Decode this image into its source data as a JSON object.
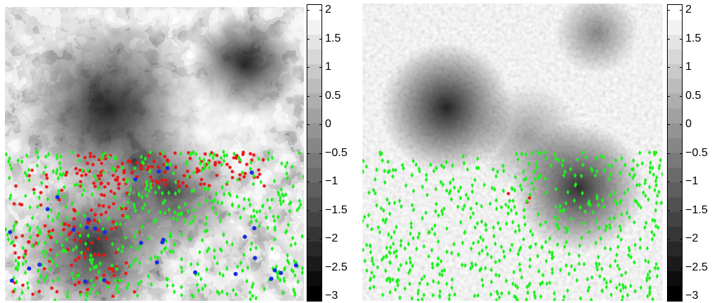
{
  "panels": [
    {
      "id": "left",
      "field": "turbulent vorticity field (grayscale)",
      "markers": {
        "green_diamonds": 520,
        "red_stars": 260,
        "blue_dots": 30
      }
    },
    {
      "id": "right",
      "field": "smoothed field (grayscale)",
      "markers": {
        "green_diamonds": 620,
        "red_stars": 3,
        "blue_dots": 0
      }
    }
  ],
  "colorbar": {
    "min": -3,
    "max": 2,
    "ticks": [
      "2",
      "1.5",
      "1",
      "0.5",
      "0",
      "−0.5",
      "−1",
      "−1.5",
      "−2",
      "−2.5",
      "−3"
    ],
    "tick_values": [
      2,
      1.5,
      1,
      0.5,
      0,
      -0.5,
      -1,
      -1.5,
      -2,
      -2.5,
      -3
    ]
  },
  "colors": {
    "marker_green": "#1cf21c",
    "marker_red": "#ee1111",
    "marker_blue": "#1a2ee0"
  }
}
